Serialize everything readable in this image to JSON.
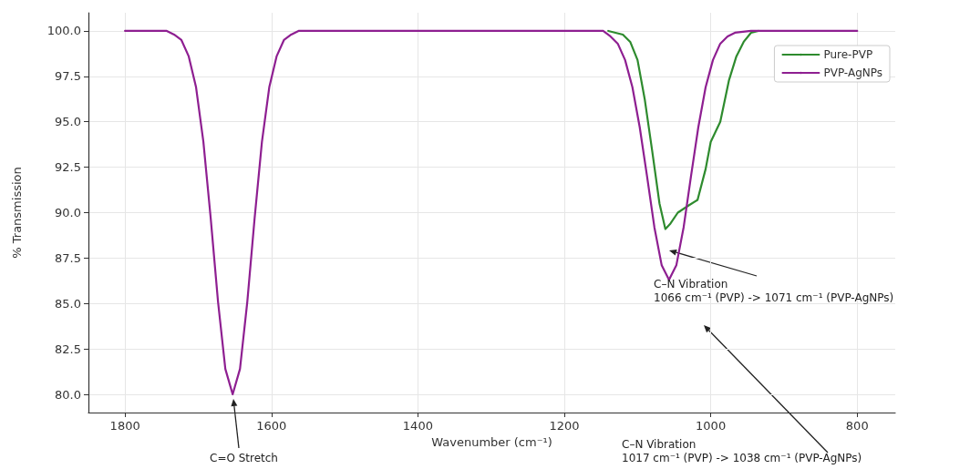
{
  "chart_data": {
    "type": "line",
    "xlabel": "Wavenumber (cm⁻¹)",
    "ylabel": "% Transmission",
    "xlim": [
      1850,
      748
    ],
    "xticks": [
      1800,
      1600,
      1400,
      1200,
      1000,
      800
    ],
    "ylim": [
      79,
      101
    ],
    "yticks": [
      {
        "value": 80,
        "label": "80.0"
      },
      {
        "value": 82.5,
        "label": "82.5"
      },
      {
        "value": 85,
        "label": "85.0"
      },
      {
        "value": 87.5,
        "label": "87.5"
      },
      {
        "value": 90,
        "label": "90.0"
      },
      {
        "value": 92.5,
        "label": "92.5"
      },
      {
        "value": 95,
        "label": "95.0"
      },
      {
        "value": 97.5,
        "label": "97.5"
      },
      {
        "value": 100,
        "label": "100.0"
      }
    ],
    "grid": true,
    "legend": "top right",
    "marker": "none",
    "line_style": "solid",
    "series": [
      {
        "name": "Pure-PVP",
        "color": "#2e8b2e",
        "x": [
          1140,
          1120,
          1110,
          1100,
          1090,
          1080,
          1070,
          1062,
          1055,
          1045,
          1030,
          1018,
          1007,
          1000,
          987,
          975,
          965,
          955,
          945,
          935
        ],
        "values": [
          100,
          99.8,
          99.4,
          98.4,
          96.2,
          93.4,
          90.5,
          89.1,
          89.4,
          90.0,
          90.4,
          90.7,
          92.4,
          93.9,
          95.0,
          97.3,
          98.6,
          99.4,
          99.9,
          100
        ]
      },
      {
        "name": "PVP-AgNPs",
        "color": "#8e1f91",
        "x": [
          1800,
          1743,
          1733,
          1723,
          1713,
          1703,
          1693,
          1683,
          1673,
          1663,
          1653,
          1643,
          1633,
          1623,
          1613,
          1603,
          1593,
          1583,
          1573,
          1563,
          1147,
          1137,
          1127,
          1117,
          1107,
          1097,
          1087,
          1077,
          1067,
          1057,
          1047,
          1037,
          1027,
          1017,
          1007,
          997,
          987,
          977,
          967,
          945,
          800
        ],
        "values": [
          100,
          100,
          99.8,
          99.5,
          98.6,
          96.9,
          93.9,
          89.7,
          85.1,
          81.4,
          80,
          81.4,
          85.1,
          89.7,
          93.9,
          96.9,
          98.6,
          99.5,
          99.8,
          100,
          100,
          99.7,
          99.3,
          98.4,
          96.9,
          94.7,
          92.0,
          89.2,
          87.1,
          86.3,
          87.1,
          89.2,
          92.0,
          94.7,
          96.9,
          98.4,
          99.3,
          99.7,
          99.9,
          100,
          100
        ]
      }
    ],
    "annotations": [
      "C=O Stretch",
      "C–N Vibration\n1066 cm⁻¹ (PVP) -> 1071 cm⁻¹ (PVP-AgNPs)",
      "C–N Vibration\n1017 cm⁻¹ (PVP) -> 1038 cm⁻¹ (PVP-AgNPs)"
    ]
  }
}
